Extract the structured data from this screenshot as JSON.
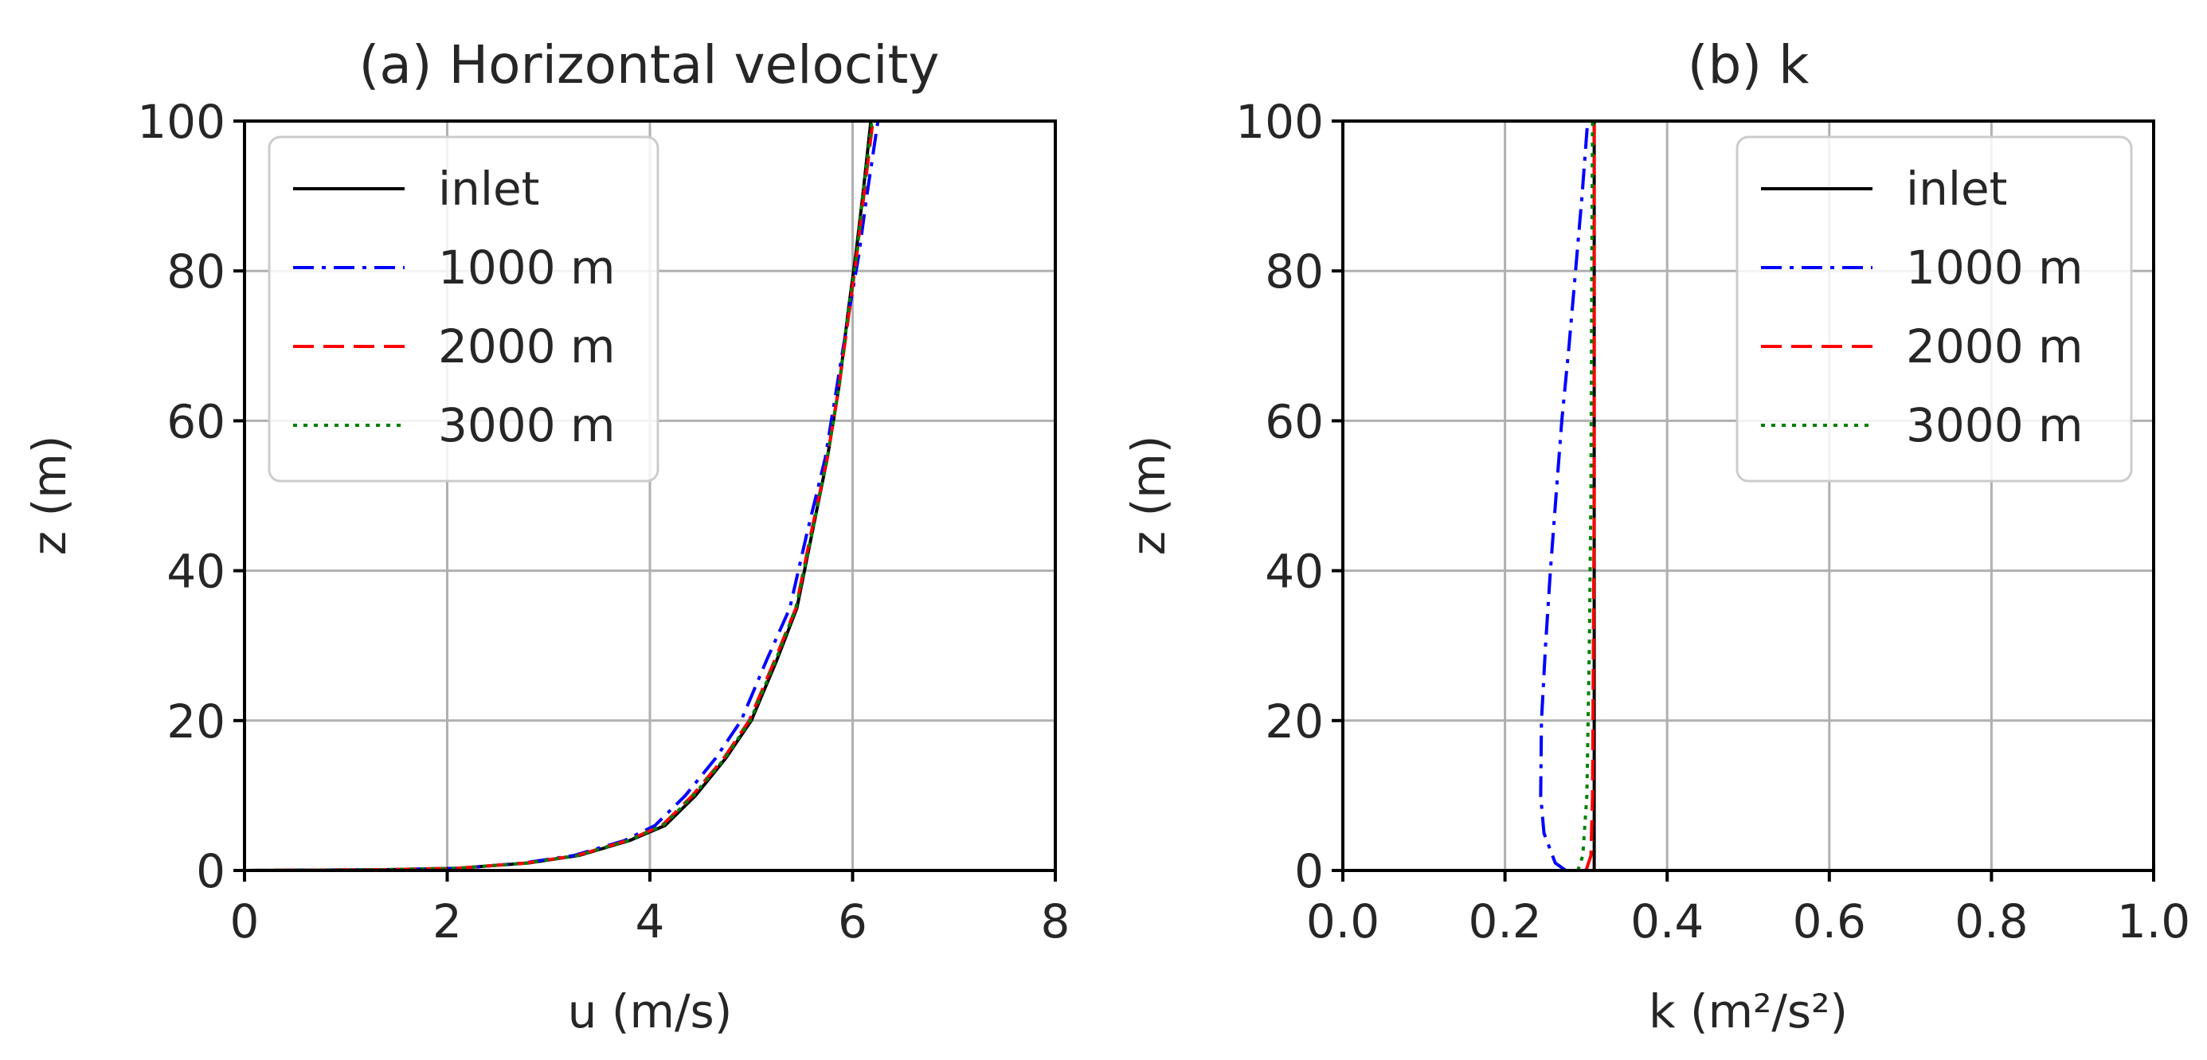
{
  "chart_data": [
    {
      "type": "line",
      "title": "(a) Horizontal velocity",
      "xlabel": "u (m/s)",
      "ylabel": "z (m)",
      "xlim": [
        0,
        8
      ],
      "ylim": [
        0,
        100
      ],
      "xticks": [
        "0",
        "2",
        "4",
        "6",
        "8"
      ],
      "yticks": [
        "0",
        "20",
        "40",
        "60",
        "80",
        "100"
      ],
      "grid": true,
      "legend_position": "upper-left",
      "series": [
        {
          "name": "inlet",
          "color": "#000000",
          "style": "solid",
          "x": [
            0.0,
            1.35,
            2.1,
            2.8,
            3.3,
            3.8,
            4.15,
            4.45,
            4.75,
            5.0,
            5.25,
            5.45,
            5.6,
            5.75,
            5.87,
            5.96,
            6.03,
            6.1,
            6.18
          ],
          "y": [
            0,
            0.1,
            0.3,
            1,
            2,
            4,
            6,
            10,
            15,
            20,
            28,
            35,
            45,
            55,
            65,
            75,
            82,
            90,
            100
          ]
        },
        {
          "name": "1000 m",
          "color": "#0000ff",
          "style": "dashdot",
          "x": [
            0.0,
            1.4,
            2.15,
            2.75,
            3.25,
            3.75,
            4.05,
            4.35,
            4.65,
            4.9,
            5.15,
            5.38,
            5.55,
            5.73,
            5.85,
            5.97,
            6.06,
            6.14,
            6.25
          ],
          "y": [
            0,
            0.1,
            0.3,
            1,
            2,
            4,
            6,
            10,
            15,
            20,
            28,
            35,
            45,
            55,
            65,
            75,
            82,
            90,
            100
          ]
        },
        {
          "name": "2000 m",
          "color": "#ff0000",
          "style": "dashed",
          "x": [
            0.0,
            1.35,
            2.1,
            2.78,
            3.28,
            3.78,
            4.12,
            4.42,
            4.73,
            4.98,
            5.23,
            5.44,
            5.59,
            5.75,
            5.87,
            5.97,
            6.04,
            6.11,
            6.2
          ],
          "y": [
            0,
            0.1,
            0.3,
            1,
            2,
            4,
            6,
            10,
            15,
            20,
            28,
            35,
            45,
            55,
            65,
            75,
            82,
            90,
            100
          ]
        },
        {
          "name": "3000 m",
          "color": "#008000",
          "style": "dotted",
          "x": [
            0.0,
            1.35,
            2.1,
            2.79,
            3.29,
            3.79,
            4.13,
            4.43,
            4.74,
            4.99,
            5.24,
            5.44,
            5.6,
            5.75,
            5.87,
            5.96,
            6.04,
            6.1,
            6.19
          ],
          "y": [
            0,
            0.1,
            0.3,
            1,
            2,
            4,
            6,
            10,
            15,
            20,
            28,
            35,
            45,
            55,
            65,
            75,
            82,
            90,
            100
          ]
        }
      ]
    },
    {
      "type": "line",
      "title": "(b) k",
      "xlabel": "k (m²/s²)",
      "ylabel": "z (m)",
      "xlim": [
        0,
        1
      ],
      "ylim": [
        0,
        100
      ],
      "xticks": [
        "0.0",
        "0.2",
        "0.4",
        "0.6",
        "0.8",
        "1.0"
      ],
      "yticks": [
        "0",
        "20",
        "40",
        "60",
        "80",
        "100"
      ],
      "grid": true,
      "legend_position": "upper-right",
      "series": [
        {
          "name": "inlet",
          "color": "#000000",
          "style": "solid",
          "x": [
            0.31,
            0.31
          ],
          "y": [
            0,
            100
          ]
        },
        {
          "name": "1000 m",
          "color": "#0000ff",
          "style": "dashdot",
          "x": [
            0.275,
            0.262,
            0.248,
            0.244,
            0.245,
            0.25,
            0.256,
            0.263,
            0.27,
            0.279,
            0.287,
            0.295,
            0.302
          ],
          "y": [
            0,
            1,
            5,
            10,
            20,
            30,
            40,
            50,
            60,
            70,
            80,
            90,
            100
          ]
        },
        {
          "name": "2000 m",
          "color": "#ff0000",
          "style": "dashed",
          "x": [
            0.3,
            0.306,
            0.308,
            0.309,
            0.31,
            0.31,
            0.31
          ],
          "y": [
            0,
            2,
            10,
            30,
            50,
            80,
            100
          ]
        },
        {
          "name": "3000 m",
          "color": "#008000",
          "style": "dotted",
          "x": [
            0.29,
            0.296,
            0.301,
            0.304,
            0.306,
            0.307,
            0.308
          ],
          "y": [
            0,
            2,
            10,
            30,
            50,
            80,
            100
          ]
        }
      ]
    }
  ]
}
